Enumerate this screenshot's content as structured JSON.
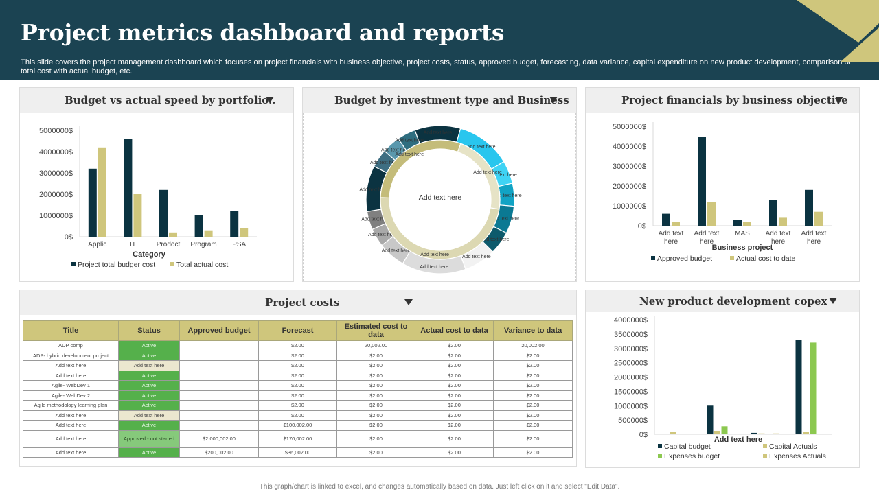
{
  "header": {
    "title": "Project metrics dashboard and reports",
    "subtitle": "This slide covers the project management dashboard which focuses on project financials with business objective, project costs, status, approved budget, forecasting, data variance, capital expenditure on new product development, comparison of total cost with actual budget, etc."
  },
  "footer": {
    "note": "This graph/chart is linked to excel, and changes automatically based on data. Just left click on it and select \"Edit Data\"."
  },
  "colors": {
    "header_bg": "#1b4352",
    "navy": "#0b3341",
    "khaki": "#cfc67c",
    "green": "#55b04b",
    "light_green": "#8cc850",
    "cyan": "#29c6ee",
    "panel_head_bg": "#efefef"
  },
  "panels": {
    "budget_vs_actual": {
      "title": "Budget vs actual speed by portfolio.."
    },
    "budget_by_investment": {
      "title": "Budget by  investment type and Business"
    },
    "project_financials": {
      "title": "Project financials by business objective"
    },
    "project_costs": {
      "title": "Project costs"
    },
    "new_product": {
      "title": "New product development copex"
    }
  },
  "project_costs": {
    "columns": [
      "Title",
      "Status",
      "Approved budget",
      "Forecast",
      "Estimated cost to data",
      "Actual cost to data",
      "Variance to data"
    ],
    "rows": [
      [
        "ADP comp",
        "Active",
        "",
        "$2.00",
        "20,002.00",
        "$2.00",
        "20,002.00"
      ],
      [
        "ADP- hybrid development  project",
        "Active",
        "",
        "$2.00",
        "$2.00",
        "$2.00",
        "$2.00"
      ],
      [
        "Add text here",
        "Add text here",
        "",
        "$2.00",
        "$2.00",
        "$2.00",
        "$2.00"
      ],
      [
        "Add text here",
        "Active",
        "",
        "$2.00",
        "$2.00",
        "$2.00",
        "$2.00"
      ],
      [
        "Agile- WebDev 1",
        "Active",
        "",
        "$2.00",
        "$2.00",
        "$2.00",
        "$2.00"
      ],
      [
        "Agile- WebDev 2",
        "Active",
        "",
        "$2.00",
        "$2.00",
        "$2.00",
        "$2.00"
      ],
      [
        "Agile methodology  learning plan",
        "Active",
        "",
        "$2.00",
        "$2.00",
        "$2.00",
        "$2.00"
      ],
      [
        "Add text here",
        "Add text here",
        "",
        "$2.00",
        "$2.00",
        "$2.00",
        "$2.00"
      ],
      [
        "Add text here",
        "Active",
        "",
        "$100,002.00",
        "$2.00",
        "$2.00",
        "$2.00"
      ],
      [
        "Add text here",
        "Approved - not started",
        "$2,000,002.00",
        "$170,002.00",
        "$2.00",
        "$2.00",
        "$2.00"
      ],
      [
        "Add text here",
        "Active",
        "$200,002.00",
        "$36,002.00",
        "$2.00",
        "$2.00",
        "$2.00"
      ]
    ]
  },
  "chart_data": [
    {
      "type": "bar",
      "title": "Budget vs actual speed by portfolio..",
      "xlabel": "Category",
      "ylabel": "",
      "categories": [
        "Applic",
        "IT",
        "Prodoct",
        "Program",
        "PSA"
      ],
      "series": [
        {
          "name": "Project total budger cost",
          "color": "#0b3341",
          "values": [
            3200000,
            4600000,
            2200000,
            1000000,
            1200000
          ]
        },
        {
          "name": "Total actual cost",
          "color": "#cfc67c",
          "values": [
            4200000,
            2000000,
            200000,
            300000,
            400000
          ]
        }
      ],
      "ylim": [
        0,
        5000000
      ],
      "yticks": [
        "5000000$",
        "4000000$",
        "3000000$",
        "2000000$",
        "1000000$",
        "0$"
      ],
      "legend": "bottom",
      "grid": false
    },
    {
      "type": "pie",
      "title": "Budget by  investment type and Business",
      "center_label": "Add text here",
      "outer_ring": [
        {
          "label": "Add text here",
          "value": 10,
          "color": "#0b3341"
        },
        {
          "label": "Add text here",
          "value": 12,
          "color": "#29c6ee"
        },
        {
          "label": "Add text here",
          "value": 5,
          "color": "#3fd3f4"
        },
        {
          "label": "Add text here",
          "value": 5,
          "color": "#11a3c4"
        },
        {
          "label": "Add text here",
          "value": 6,
          "color": "#0b7993"
        },
        {
          "label": "Add text here",
          "value": 5,
          "color": "#0d5a6c"
        },
        {
          "label": "Add text here",
          "value": 7,
          "color": "#f2f2f2"
        },
        {
          "label": "Add text here",
          "value": 14,
          "color": "#dcdcdc"
        },
        {
          "label": "Add text here",
          "value": 6,
          "color": "#c8c8c8"
        },
        {
          "label": "Add text here",
          "value": 4,
          "color": "#a9a9a9"
        },
        {
          "label": "Add text here",
          "value": 4,
          "color": "#808080"
        },
        {
          "label": "Add text here",
          "value": 10,
          "color": "#0b3341"
        },
        {
          "label": "Add text here",
          "value": 4,
          "color": "#3e6e82"
        },
        {
          "label": "Add text here",
          "value": 4,
          "color": "#5a98ad"
        },
        {
          "label": "Add text here",
          "value": 4,
          "color": "#2f6e80"
        }
      ],
      "inner_ring": [
        {
          "label": "Add text here",
          "value": 22,
          "color": "#e6e3c6"
        },
        {
          "label": "Add text here",
          "value": 48,
          "color": "#dcd8b2"
        },
        {
          "label": "Add text here",
          "value": 30,
          "color": "#c4bc7a"
        }
      ]
    },
    {
      "type": "bar",
      "title": "Project financials by business objective",
      "xlabel": "Business project",
      "ylabel": "",
      "categories": [
        "Add text here",
        "Add text here",
        "MAS",
        "Add text here",
        "Add text here"
      ],
      "series": [
        {
          "name": "Approved budget",
          "color": "#0b3341",
          "values": [
            600000,
            4450000,
            300000,
            1300000,
            1800000
          ]
        },
        {
          "name": "Actual cost to date",
          "color": "#cfc67c",
          "values": [
            200000,
            1200000,
            200000,
            400000,
            700000
          ]
        }
      ],
      "ylim": [
        0,
        5000000
      ],
      "yticks": [
        "5000000$",
        "4000000$",
        "3000000$",
        "2000000$",
        "1000000$",
        "0$"
      ],
      "legend": "bottom",
      "grid": false
    },
    {
      "type": "bar",
      "title": "New product development copex",
      "xlabel": "Add text here",
      "ylabel": "",
      "categories": [
        "",
        "",
        "",
        ""
      ],
      "series": [
        {
          "name": "Capital budget",
          "color": "#0b3341",
          "values": [
            0,
            1000000,
            50000,
            3300000
          ]
        },
        {
          "name": "Capital Actuals",
          "color": "#cfc67c",
          "values": [
            80000,
            120000,
            30000,
            80000
          ]
        },
        {
          "name": "Expenses budget",
          "color": "#8cc850",
          "values": [
            0,
            280000,
            0,
            3200000
          ]
        },
        {
          "name": "Expenses Actuals",
          "color": "#cfc67c",
          "values": [
            0,
            0,
            30000,
            0
          ]
        }
      ],
      "ylim": [
        0,
        4000000
      ],
      "yticks": [
        "4000000$",
        "3500000$",
        "3000000$",
        "2500000$",
        "2000000$",
        "1500000$",
        "1000000$",
        "500000$",
        "0$"
      ],
      "legend": "bottom",
      "grid": false
    }
  ]
}
